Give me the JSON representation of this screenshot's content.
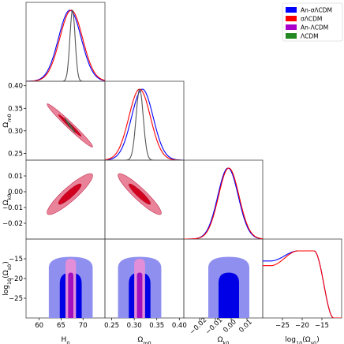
{
  "chart_data": {
    "type": "triangle_corner_plot",
    "parameters": [
      {
        "key": "H0",
        "label": "H",
        "sub": "0",
        "range": [
          57,
          75
        ],
        "ticks": [
          60,
          65,
          70
        ]
      },
      {
        "key": "Om0",
        "label": "Ω",
        "sub": "m0",
        "range": [
          0.235,
          0.41
        ],
        "ticks": [
          0.25,
          0.3,
          0.35,
          0.4
        ],
        "tick_labels": [
          "0.25",
          "0.30",
          "0.35",
          "0.40"
        ]
      },
      {
        "key": "Ok0",
        "label": "Ω",
        "sub": "k0",
        "range": [
          -0.03,
          0.02
        ],
        "ticks": [
          -0.02,
          -0.01,
          0.0,
          0.01
        ],
        "tick_labels": [
          "−0.02",
          "−0.01",
          "0.00",
          "0.01"
        ]
      },
      {
        "key": "logOs0",
        "label": "log",
        "sub": "10",
        "suffix": "(Ω",
        "sub2": "s0",
        "suffix2": ")",
        "range": [
          -30,
          -10
        ],
        "ticks": [
          -25,
          -20,
          -15
        ],
        "tick_labels": [
          "−25",
          "−20",
          "−15"
        ]
      }
    ],
    "legend": {
      "placement": "top-right",
      "entries": [
        {
          "name": "An-σΛCDM",
          "color": "#0000ff"
        },
        {
          "name": "σΛCDM",
          "color": "#ff0000"
        },
        {
          "name": "An-ΛCDM",
          "color": "#aa00cc"
        },
        {
          "name": "ΛCDM",
          "color": "#228822"
        }
      ]
    },
    "diagonal": {
      "H0": [
        {
          "series": "An-σΛCDM",
          "peak": 67.0,
          "width": 2.6
        },
        {
          "series": "σΛCDM",
          "peak": 67.3,
          "width": 2.6
        },
        {
          "series": "ΛCDM",
          "peak": 67.6,
          "width": 0.6
        }
      ],
      "Om0": [
        {
          "series": "An-σΛCDM",
          "peak": 0.318,
          "width": 0.024
        },
        {
          "series": "σΛCDM",
          "peak": 0.312,
          "width": 0.024
        },
        {
          "series": "ΛCDM",
          "peak": 0.312,
          "width": 0.008
        }
      ],
      "Ok0": [
        {
          "series": "An-σΛCDM",
          "peak": -0.002,
          "width": 0.0065
        },
        {
          "series": "σΛCDM",
          "peak": -0.0015,
          "width": 0.0065
        }
      ],
      "logOs0": [
        {
          "series": "An-σΛCDM",
          "plateau_low": 0.85,
          "plateau_high": 1.0,
          "drop_at": -17,
          "end": -12
        },
        {
          "series": "σΛCDM",
          "plateau_low": 0.78,
          "plateau_high": 1.0,
          "drop_at": -17,
          "end": -12
        }
      ]
    },
    "contours": {
      "H0_Om0": {
        "center": [
          67.0,
          0.312
        ],
        "sigma": [
          2.6,
          0.024
        ],
        "corr": -0.98
      },
      "H0_Ok0": {
        "center": [
          67.0,
          -0.0015
        ],
        "sigma": [
          2.6,
          0.0065
        ],
        "corr": 0.9
      },
      "Om0_Ok0": {
        "center": [
          0.312,
          -0.0015
        ],
        "sigma": [
          0.024,
          0.0065
        ],
        "corr": -0.92
      },
      "H0_logOs0": {
        "x_center": 67.2,
        "x_sigma": 2.5,
        "y_top_1s": -18.5,
        "y_top_2s": -14.5,
        "narrow_x_sigma": 0.6
      },
      "Om0_logOs0": {
        "x_center": 0.312,
        "x_sigma": 0.024,
        "y_top_1s": -18.5,
        "y_top_2s": -14.5,
        "narrow_x_sigma": 0.006
      },
      "Ok0_logOs0": {
        "x_center": -0.0015,
        "x_sigma": 0.0065,
        "y_top_1s": -18.5,
        "y_top_2s": -14.5
      }
    }
  }
}
